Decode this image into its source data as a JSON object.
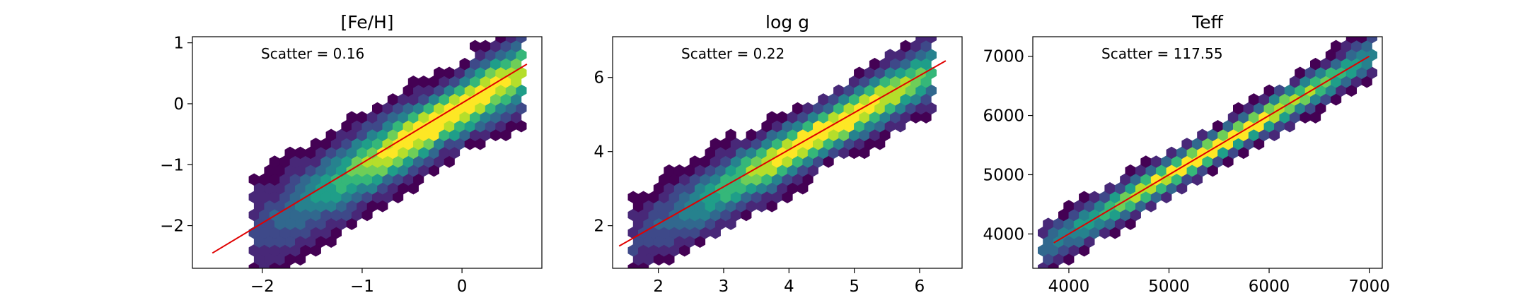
{
  "chart_data": [
    {
      "type": "hexbin",
      "title": "[Fe/H]",
      "annotation": "Scatter = 0.16",
      "xlim": [
        -2.7,
        0.8
      ],
      "ylim": [
        -2.7,
        1.1
      ],
      "xticks": [
        -2,
        -1,
        0
      ],
      "yticks": [
        -2,
        -1,
        0,
        1
      ],
      "xtick_labels": [
        "−2",
        "−1",
        "0"
      ],
      "ytick_labels": [
        "−2",
        "−1",
        "0",
        "1"
      ],
      "fit_line": {
        "x": [
          -2.5,
          0.65
        ],
        "y": [
          -2.45,
          0.65
        ]
      },
      "density": {
        "center": [
          -0.15,
          -0.2
        ],
        "spread_along": 0.9,
        "spread_across": 0.28,
        "x_range": [
          -2.0,
          0.55
        ]
      },
      "grid": false
    },
    {
      "type": "hexbin",
      "title": "log g",
      "annotation": "Scatter = 0.22",
      "xlim": [
        1.3,
        6.65
      ],
      "ylim": [
        0.85,
        7.1
      ],
      "xticks": [
        2,
        3,
        4,
        5,
        6
      ],
      "yticks": [
        2,
        4,
        6
      ],
      "xtick_labels": [
        "2",
        "3",
        "4",
        "5",
        "6"
      ],
      "ytick_labels": [
        "2",
        "4",
        "6"
      ],
      "fit_line": {
        "x": [
          1.4,
          6.4
        ],
        "y": [
          1.45,
          6.45
        ]
      },
      "density": {
        "center": [
          4.6,
          4.6
        ],
        "spread_along": 1.35,
        "spread_across": 0.38,
        "x_range": [
          1.7,
          6.1
        ]
      },
      "grid": false
    },
    {
      "type": "hexbin",
      "title": "Teff",
      "annotation": "Scatter = 117.55",
      "xlim": [
        3640,
        7130
      ],
      "ylim": [
        3420,
        7330
      ],
      "xticks": [
        4000,
        5000,
        6000,
        7000
      ],
      "yticks": [
        4000,
        5000,
        6000,
        7000
      ],
      "xtick_labels": [
        "4000",
        "5000",
        "6000",
        "7000"
      ],
      "ytick_labels": [
        "4000",
        "5000",
        "6000",
        "7000"
      ],
      "fit_line": {
        "x": [
          3850,
          7000
        ],
        "y": [
          3850,
          7000
        ]
      },
      "density": {
        "center": [
          5500,
          5500
        ],
        "spread_along": 1000,
        "spread_across": 140,
        "x_range": [
          3800,
          7000
        ]
      },
      "grid": false
    }
  ],
  "colormap": [
    "#440154",
    "#482878",
    "#3e4989",
    "#31688e",
    "#26828e",
    "#1f9e89",
    "#35b779",
    "#6ece58",
    "#b5de2b",
    "#fde725"
  ],
  "line_color": "#e00000"
}
